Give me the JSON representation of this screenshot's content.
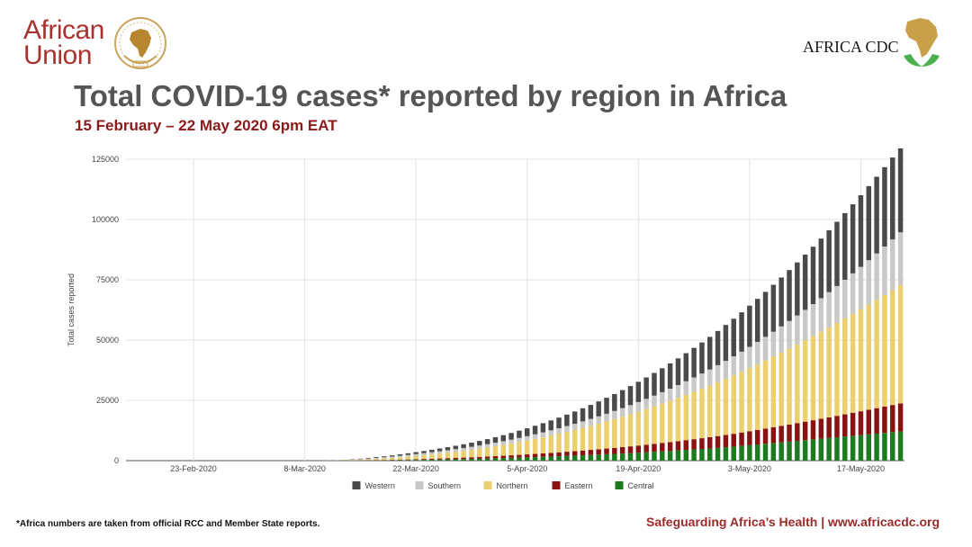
{
  "header": {
    "au_logo": {
      "line1": "African",
      "line2": "Union",
      "emblem": "african-union-emblem"
    },
    "cdc_logo": {
      "text": "AFRICA CDC",
      "mark": "africa-map-with-hands"
    }
  },
  "title": "Total COVID-19 cases* reported by region in Africa",
  "subtitle": "15 February – 22 May 2020 6pm EAT",
  "footer": {
    "footnote": "*Africa numbers are taken from official RCC and Member State reports.",
    "tagline": "Safeguarding Africa’s Health | www.africacdc.org"
  },
  "chart_data": {
    "type": "bar",
    "stacked": true,
    "ylabel": "Total cases reported",
    "ylim": [
      0,
      125000
    ],
    "yticks": [
      0,
      25000,
      50000,
      75000,
      100000,
      125000
    ],
    "ytick_labels": [
      "0",
      "25000",
      "50000",
      "75000",
      "100000",
      "125000"
    ],
    "xtick_labels": [
      "23-Feb-2020",
      "8-Mar-2020",
      "22-Mar-2020",
      "5-Apr-2020",
      "19-Apr-2020",
      "3-May-2020",
      "17-May-2020"
    ],
    "grid": true,
    "legend_position": "bottom",
    "first_date": "15-Feb-2020",
    "last_date": "22-May-2020",
    "series": [
      {
        "name": "Central",
        "color": "#1e7a1e",
        "values": [
          0,
          0,
          0,
          0,
          0,
          0,
          0,
          0,
          0,
          0,
          0,
          0,
          0,
          0,
          0,
          0,
          0,
          0,
          0,
          0,
          0,
          0,
          0,
          0,
          0,
          5,
          10,
          20,
          40,
          60,
          80,
          110,
          140,
          180,
          220,
          260,
          300,
          360,
          420,
          480,
          540,
          600,
          660,
          720,
          800,
          880,
          960,
          1050,
          1150,
          1250,
          1350,
          1460,
          1580,
          1700,
          1820,
          1950,
          2080,
          2220,
          2360,
          2500,
          2650,
          2800,
          2960,
          3120,
          3300,
          3480,
          3660,
          3850,
          4050,
          4250,
          4450,
          4650,
          4850,
          5050,
          5300,
          5550,
          5800,
          6100,
          6400,
          6700,
          7000,
          7300,
          7600,
          7900,
          8200,
          8500,
          8800,
          9100,
          9400,
          9700,
          10000,
          10300,
          10600,
          10900,
          11200,
          11500,
          11800,
          12100
        ]
      },
      {
        "name": "Eastern",
        "color": "#8b1212",
        "values": [
          0,
          0,
          0,
          0,
          0,
          0,
          0,
          0,
          0,
          0,
          0,
          0,
          0,
          0,
          0,
          0,
          0,
          0,
          0,
          0,
          0,
          0,
          0,
          0,
          0,
          5,
          10,
          20,
          40,
          60,
          80,
          100,
          130,
          160,
          200,
          240,
          280,
          330,
          380,
          430,
          490,
          550,
          610,
          680,
          750,
          820,
          900,
          980,
          1060,
          1150,
          1240,
          1330,
          1430,
          1530,
          1640,
          1750,
          1860,
          1980,
          2100,
          2230,
          2360,
          2500,
          2640,
          2800,
          2960,
          3130,
          3300,
          3480,
          3660,
          3850,
          4050,
          4250,
          4450,
          4660,
          4880,
          5100,
          5330,
          5560,
          5800,
          6050,
          6300,
          6560,
          6830,
          7100,
          7380,
          7660,
          7950,
          8250,
          8560,
          8880,
          9200,
          9530,
          9870,
          10210,
          10560,
          10920,
          11280,
          11650
        ]
      },
      {
        "name": "Northern",
        "color": "#ecd06f",
        "values": [
          0,
          0,
          0,
          0,
          0,
          0,
          0,
          0,
          0,
          0,
          0,
          0,
          0,
          0,
          0,
          0,
          0,
          0,
          0,
          0,
          0,
          0,
          0,
          0,
          0,
          40,
          80,
          140,
          220,
          300,
          400,
          520,
          650,
          800,
          960,
          1140,
          1330,
          1540,
          1760,
          2000,
          2250,
          2520,
          2800,
          3100,
          3420,
          3760,
          4120,
          4500,
          4900,
          5320,
          5760,
          6220,
          6700,
          7200,
          7720,
          8260,
          8820,
          9400,
          10000,
          10620,
          11260,
          11920,
          12600,
          13300,
          14020,
          14760,
          15520,
          16300,
          17100,
          17920,
          18760,
          19620,
          20500,
          21400,
          22320,
          23260,
          24220,
          25200,
          26200,
          27220,
          28260,
          29320,
          30400,
          31500,
          32620,
          33760,
          34920,
          36100,
          37300,
          38520,
          39760,
          41020,
          42300,
          43600,
          44920,
          46260,
          47620,
          49000
        ]
      },
      {
        "name": "Southern",
        "color": "#c8c9c7",
        "values": [
          0,
          0,
          0,
          0,
          0,
          0,
          0,
          0,
          0,
          0,
          0,
          0,
          0,
          0,
          0,
          0,
          0,
          0,
          0,
          0,
          0,
          0,
          0,
          0,
          0,
          30,
          60,
          110,
          170,
          240,
          320,
          400,
          480,
          560,
          640,
          720,
          800,
          870,
          930,
          990,
          1040,
          1100,
          1160,
          1220,
          1290,
          1360,
          1440,
          1520,
          1610,
          1700,
          1800,
          1910,
          2020,
          2140,
          2260,
          2390,
          2530,
          2680,
          2840,
          3010,
          3190,
          3380,
          3580,
          3790,
          4010,
          4240,
          4490,
          4760,
          5040,
          5340,
          5660,
          5990,
          6340,
          6700,
          7080,
          7480,
          7900,
          8340,
          8800,
          9280,
          9780,
          10300,
          10850,
          11420,
          12010,
          12620,
          13260,
          13920,
          14610,
          15320,
          16060,
          16820,
          17610,
          18420,
          19260,
          20130,
          21020,
          21940
        ]
      },
      {
        "name": "Western",
        "color": "#4a4a4a",
        "values": [
          0,
          0,
          0,
          0,
          0,
          0,
          0,
          0,
          0,
          0,
          0,
          0,
          0,
          0,
          0,
          0,
          0,
          0,
          0,
          0,
          0,
          0,
          0,
          0,
          0,
          20,
          50,
          90,
          140,
          190,
          250,
          320,
          400,
          490,
          590,
          690,
          800,
          900,
          1010,
          1130,
          1260,
          1400,
          1560,
          1730,
          1910,
          2100,
          2310,
          2530,
          2760,
          3000,
          3250,
          3520,
          3800,
          4100,
          4410,
          4740,
          5080,
          5440,
          5810,
          6200,
          6610,
          7030,
          7470,
          7930,
          8400,
          8890,
          9400,
          9930,
          10480,
          11050,
          11640,
          12250,
          12880,
          13530,
          14200,
          14890,
          15600,
          16330,
          17080,
          17850,
          18640,
          19450,
          20280,
          21130,
          22000,
          22890,
          23800,
          24730,
          25680,
          26650,
          27640,
          28650,
          29680,
          30730,
          31800,
          32890,
          34000,
          35130
        ]
      }
    ],
    "legend_order": [
      "Western",
      "Southern",
      "Northern",
      "Eastern",
      "Central"
    ]
  }
}
